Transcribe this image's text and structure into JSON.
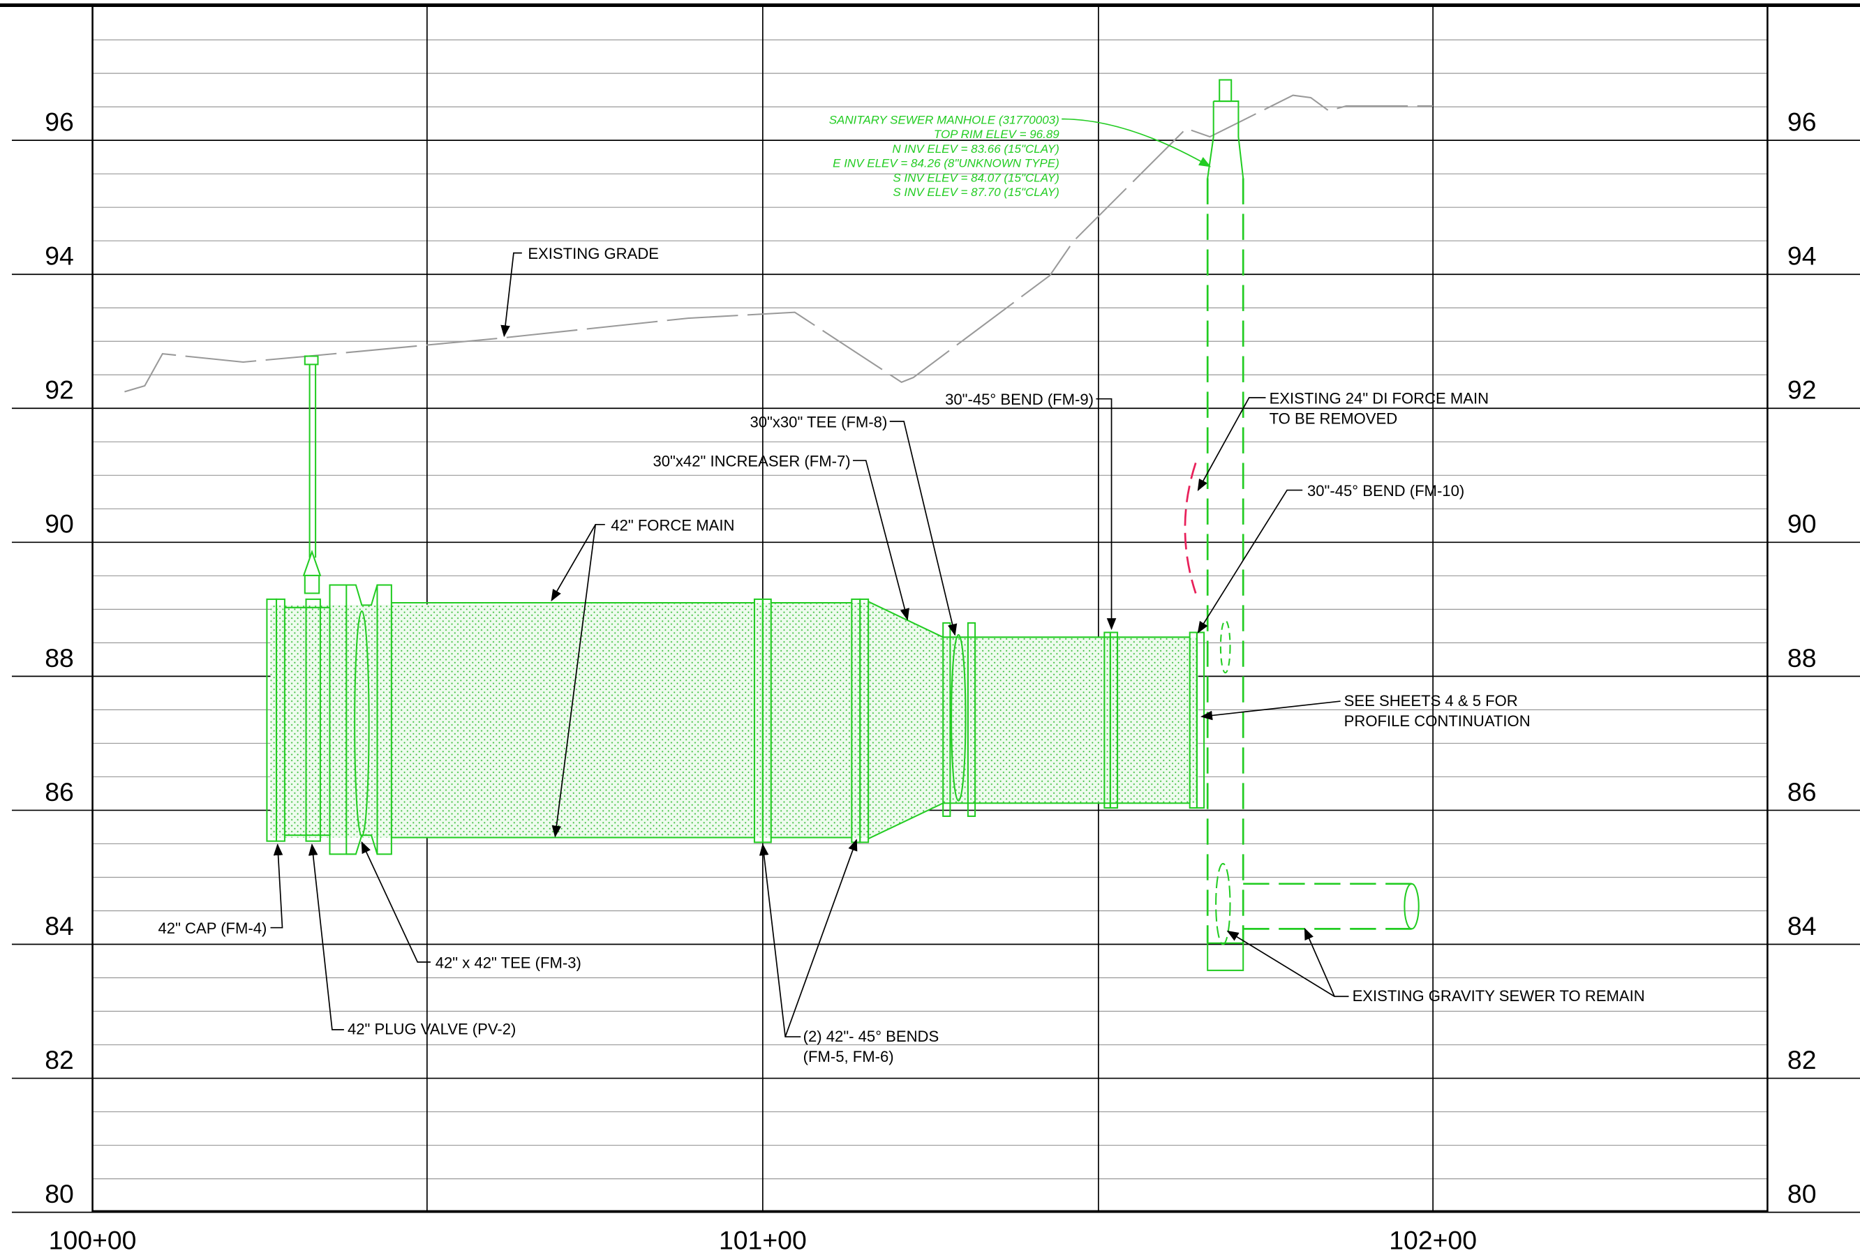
{
  "profile": {
    "elevations": [
      "96",
      "94",
      "92",
      "90",
      "88",
      "86",
      "84",
      "82",
      "80"
    ],
    "stations": [
      "100+00",
      "101+00",
      "102+00"
    ]
  },
  "manhole_note": [
    "SANITARY SEWER MANHOLE (31770003)",
    "TOP RIM ELEV = 96.89",
    "N INV ELEV = 83.66 (15\"CLAY)",
    "E INV ELEV = 84.26 (8\"UNKNOWN TYPE)",
    "S INV ELEV = 84.07 (15\"CLAY)",
    "S INV ELEV = 87.70 (15\"CLAY)"
  ],
  "callouts": [
    {
      "lines": [
        "EXISTING GRADE"
      ]
    },
    {
      "lines": [
        "42\" FORCE MAIN"
      ]
    },
    {
      "lines": [
        "30\"x42\" INCREASER (FM-7)"
      ]
    },
    {
      "lines": [
        "30\"x30\" TEE (FM-8)"
      ]
    },
    {
      "lines": [
        "30\"-45° BEND (FM-9)"
      ]
    },
    {
      "lines": [
        "EXISTING 24\" DI FORCE MAIN",
        "TO BE REMOVED"
      ]
    },
    {
      "lines": [
        "30\"-45° BEND (FM-10)"
      ]
    },
    {
      "lines": [
        "SEE SHEETS 4 & 5 FOR",
        "PROFILE CONTINUATION"
      ]
    },
    {
      "lines": [
        "EXISTING GRAVITY SEWER TO REMAIN"
      ]
    },
    {
      "lines": [
        "(2) 42\"- 45° BENDS",
        "(FM-5, FM-6)"
      ]
    },
    {
      "lines": [
        "42\" PLUG VALVE (PV-2)"
      ]
    },
    {
      "lines": [
        "42\" x 42\" TEE (FM-3)"
      ]
    },
    {
      "lines": [
        "42\" CAP (FM-4)"
      ]
    }
  ]
}
